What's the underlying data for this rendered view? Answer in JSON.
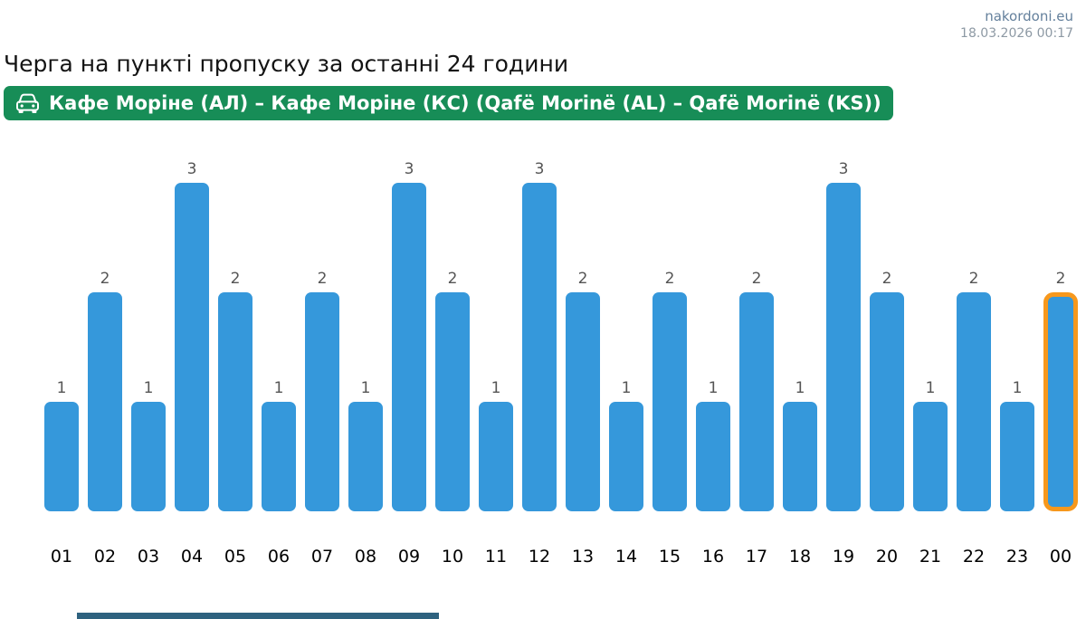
{
  "header": {
    "site": "nakordoni.eu",
    "timestamp": "18.03.2026 00:17"
  },
  "page_title": "Черга на пункті пропуску за останні 24 години",
  "checkpoint_banner": {
    "label": "Кафе Моріне (АЛ) – Кафе Моріне (КС) (Qafë Morinë (AL) – Qafë Morinë (KS))",
    "icon": "car-icon",
    "background_color": "#178d57"
  },
  "chart_data": {
    "type": "bar",
    "title": "Черга на пункті пропуску за останні 24 години",
    "xlabel": "",
    "ylabel": "",
    "categories": [
      "01",
      "02",
      "03",
      "04",
      "05",
      "06",
      "07",
      "08",
      "09",
      "10",
      "11",
      "12",
      "13",
      "14",
      "15",
      "16",
      "17",
      "18",
      "19",
      "20",
      "21",
      "22",
      "23",
      "00"
    ],
    "values": [
      1,
      2,
      1,
      3,
      2,
      1,
      2,
      1,
      3,
      2,
      1,
      3,
      2,
      1,
      2,
      1,
      2,
      1,
      3,
      2,
      1,
      2,
      1,
      2
    ],
    "ylim": [
      0,
      3
    ],
    "value_labels": true,
    "grid": false,
    "legend": false,
    "bar_color": "#3598db",
    "value_label_color": "#555555",
    "highlighted_category": "00",
    "highlight_border_color": "#f7981c"
  }
}
